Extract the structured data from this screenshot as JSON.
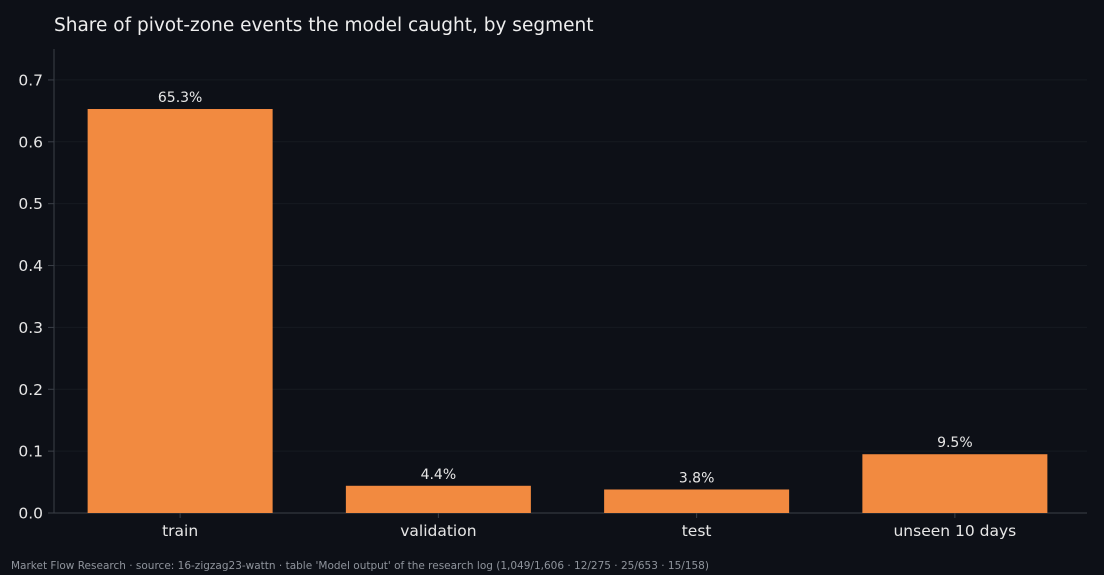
{
  "chart_data": {
    "type": "bar",
    "title": "Share of pivot-zone events the model caught, by segment",
    "xlabel": "",
    "ylabel": "",
    "categories": [
      "train",
      "validation",
      "test",
      "unseen 10 days"
    ],
    "values": [
      0.653,
      0.044,
      0.038,
      0.095
    ],
    "data_labels": [
      "65.3%",
      "4.4%",
      "3.8%",
      "9.5%"
    ],
    "ylim": [
      0,
      0.75
    ],
    "yticks": [
      0.0,
      0.1,
      0.2,
      0.3,
      0.4,
      0.5,
      0.6,
      0.7
    ],
    "ytick_labels": [
      "0.0",
      "0.1",
      "0.2",
      "0.3",
      "0.4",
      "0.5",
      "0.6",
      "0.7"
    ],
    "grid": true,
    "legend": "none"
  },
  "footer": {
    "note": "Market Flow Research · source: 16-zigzag23-wattn · table 'Model output' of the research log (1,049/1,606 · 12/275 · 25/653 · 15/158)"
  },
  "colors": {
    "background": "#0d1017",
    "bar": "#f28a40",
    "axis": "#3a3f47",
    "grid": "#161a21",
    "text": "#e6e6e6",
    "muted_text": "#8f949c"
  }
}
